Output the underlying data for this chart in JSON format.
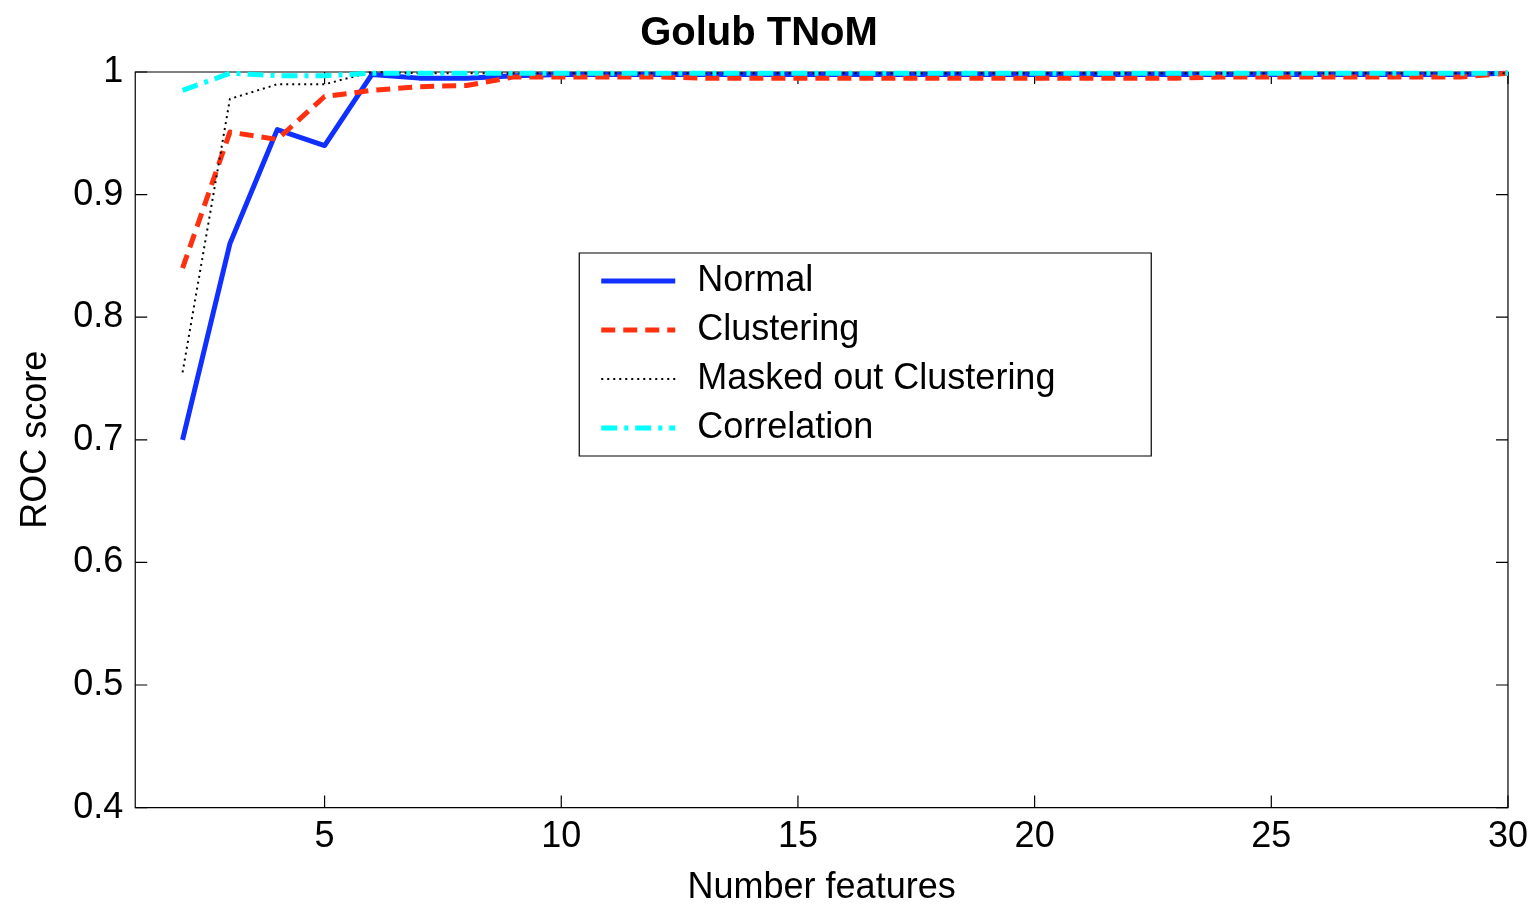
{
  "chart_data": {
    "type": "line",
    "title": "Golub TNoM",
    "xlabel": "Number features",
    "ylabel": "ROC score",
    "x": [
      2,
      3,
      4,
      5,
      6,
      7,
      8,
      9,
      10,
      11,
      12,
      13,
      14,
      15,
      16,
      17,
      18,
      19,
      20,
      21,
      22,
      23,
      24,
      25,
      26,
      27,
      28,
      29,
      30
    ],
    "xlim": [
      1,
      30
    ],
    "xticks": [
      5,
      10,
      15,
      20,
      25,
      30
    ],
    "ylim": [
      0.4,
      1
    ],
    "yticks": [
      0.4,
      0.5,
      0.6,
      0.7,
      0.8,
      0.9,
      1
    ],
    "grid": false,
    "legend": "right",
    "marker": "none",
    "series": [
      {
        "name": "Normal",
        "color": "#1030ff",
        "line_style": "solid",
        "values": [
          0.7,
          0.86,
          0.953,
          0.94,
          0.998,
          0.995,
          0.995,
          0.997,
          0.998,
          0.998,
          0.998,
          0.998,
          0.998,
          0.998,
          0.998,
          0.998,
          0.998,
          0.998,
          0.998,
          0.998,
          0.998,
          0.998,
          0.998,
          0.998,
          0.998,
          0.998,
          0.998,
          0.998,
          0.999
        ]
      },
      {
        "name": "Clustering",
        "color": "#ff3010",
        "line_style": "dashed",
        "values": [
          0.84,
          0.951,
          0.945,
          0.98,
          0.985,
          0.988,
          0.989,
          0.996,
          0.996,
          0.996,
          0.996,
          0.995,
          0.995,
          0.995,
          0.995,
          0.995,
          0.995,
          0.995,
          0.995,
          0.995,
          0.995,
          0.995,
          0.996,
          0.996,
          0.996,
          0.996,
          0.996,
          0.996,
          0.999
        ]
      },
      {
        "name": "Masked out Clustering",
        "color": "#000000",
        "line_style": "dotted",
        "values": [
          0.755,
          0.978,
          0.99,
          0.99,
          1.0,
          0.999,
          0.999,
          0.999,
          0.999,
          0.999,
          0.999,
          0.999,
          0.999,
          0.999,
          0.999,
          0.999,
          0.999,
          0.999,
          0.999,
          0.999,
          0.999,
          0.999,
          0.999,
          0.999,
          0.999,
          0.999,
          0.999,
          0.999,
          0.999
        ]
      },
      {
        "name": "Correlation",
        "color": "#00ffff",
        "line_style": "dashdot",
        "values": [
          0.985,
          0.999,
          0.997,
          0.997,
          0.999,
          0.999,
          0.999,
          0.999,
          0.999,
          0.999,
          0.999,
          0.999,
          0.999,
          0.999,
          0.999,
          0.999,
          0.999,
          0.999,
          0.999,
          0.999,
          0.999,
          0.999,
          0.999,
          0.999,
          0.999,
          0.999,
          0.999,
          0.999,
          0.999
        ]
      }
    ]
  }
}
